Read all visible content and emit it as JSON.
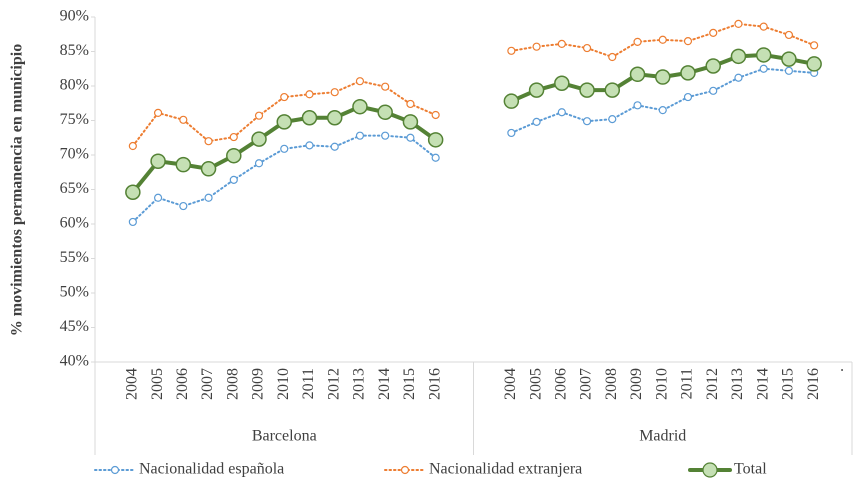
{
  "chart_data": {
    "type": "line",
    "y_label": "% movimientos permanencia en municipio",
    "ylim": [
      40,
      90
    ],
    "yticks": [
      {
        "value": 40,
        "label": "40%"
      },
      {
        "value": 45,
        "label": "45%"
      },
      {
        "value": 50,
        "label": "50%"
      },
      {
        "value": 55,
        "label": "55%"
      },
      {
        "value": 60,
        "label": "60%"
      },
      {
        "value": 65,
        "label": "65%"
      },
      {
        "value": 70,
        "label": "70%"
      },
      {
        "value": 75,
        "label": "75%"
      },
      {
        "value": 80,
        "label": "80%"
      },
      {
        "value": 85,
        "label": "85%"
      },
      {
        "value": 90,
        "label": "90%"
      }
    ],
    "groups": [
      {
        "name": "Barcelona",
        "categories": [
          null,
          "2004",
          "2005",
          "2006",
          "2007",
          "2008",
          "2009",
          "2010",
          "2011",
          "2012",
          "2013",
          "2014",
          "2015",
          "2016",
          null
        ]
      },
      {
        "name": "Madrid",
        "categories": [
          null,
          "2004",
          "2005",
          "2006",
          "2007",
          "2008",
          "2009",
          "2010",
          "2011",
          "2012",
          "2013",
          "2014",
          "2015",
          "2016",
          "."
        ]
      }
    ],
    "series": [
      {
        "name": "Nacionalidad española",
        "color": "#5b9bd5",
        "dash": "dotted",
        "marker_fill": "#ffffff",
        "values": [
          [
            null,
            60.3,
            63.8,
            62.6,
            63.8,
            66.4,
            68.8,
            70.9,
            71.4,
            71.2,
            72.8,
            72.8,
            72.5,
            69.6,
            null
          ],
          [
            null,
            73.2,
            74.8,
            76.2,
            74.9,
            75.2,
            77.2,
            76.5,
            78.4,
            79.3,
            81.2,
            82.5,
            82.2,
            81.9,
            null
          ]
        ]
      },
      {
        "name": "Nacionalidad extranjera",
        "color": "#ed7d31",
        "dash": "dotted",
        "marker_fill": "#ffffff",
        "values": [
          [
            null,
            71.3,
            76.1,
            75.1,
            72.0,
            72.6,
            75.7,
            78.4,
            78.8,
            79.1,
            80.7,
            79.9,
            77.4,
            75.8,
            null
          ],
          [
            null,
            85.1,
            85.7,
            86.1,
            85.5,
            84.2,
            86.4,
            86.7,
            86.5,
            87.7,
            89.0,
            88.6,
            87.4,
            85.9,
            null
          ]
        ]
      },
      {
        "name": "Total",
        "color": "#548235",
        "dash": "solid",
        "marker_fill": "#c5e0b4",
        "values": [
          [
            null,
            64.6,
            69.1,
            68.6,
            68.0,
            69.9,
            72.3,
            74.8,
            75.4,
            75.4,
            77.0,
            76.2,
            74.8,
            72.2,
            null
          ],
          [
            null,
            77.8,
            79.4,
            80.4,
            79.4,
            79.4,
            81.7,
            81.3,
            81.9,
            82.9,
            84.3,
            84.5,
            83.9,
            83.2,
            null
          ]
        ]
      }
    ]
  }
}
